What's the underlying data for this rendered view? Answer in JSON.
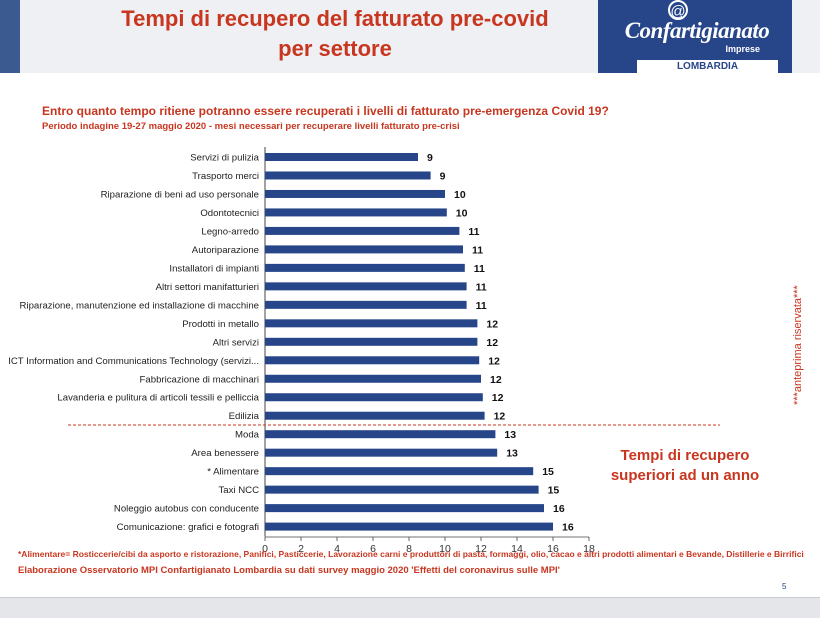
{
  "header": {
    "title_line1": "Tempi di recupero del fatturato pre-covid",
    "title_line2": "per settore",
    "logo_at": "@",
    "logo_text": "Confartigianato",
    "logo_sub": "Imprese",
    "logo_band": "LOMBARDIA"
  },
  "question": "Entro quanto tempo ritiene potranno essere recuperati i livelli di fatturato pre-emergenza Covid 19?",
  "period": "Periodo indagine 19-27 maggio 2020  - mesi necessari per recuperare livelli fatturato pre-crisi",
  "side_note": "***anteprima riservata***",
  "callout_line1": "Tempi di recupero",
  "callout_line2": "superiori ad un anno",
  "footnote": "*Alimentare= Rosticcerie/cibi da asporto e ristorazione, Panifici, Pasticcerie, Lavorazione carni e produttori di pasta, formaggi, olio, cacao e altri prodotti alimentari e Bevande, Distillerie e Birrifici",
  "source": "Elaborazione Osservatorio MPI Confartigianato Lombardia su dati survey maggio 2020  'Effetti del coronavirus sulle MPI'",
  "page_number": "5",
  "colors": {
    "accent": "#c8361f",
    "bar": "#27468a",
    "brand": "#27468a"
  },
  "chart_data": {
    "type": "bar",
    "orientation": "horizontal",
    "categories": [
      "Servizi di pulizia",
      "Trasporto merci",
      "Riparazione di beni ad uso personale",
      "Odontotecnici",
      "Legno-arredo",
      "Autoriparazione",
      "Installatori di impianti",
      "Altri settori manifatturieri",
      "Riparazione, manutenzione ed installazione di macchine",
      "Prodotti in metallo",
      "Altri servizi",
      "ICT Information and Communications Technology (servizi...",
      "Fabbricazione di macchinari",
      "Lavanderia e pulitura di articoli tessili e pelliccia",
      "Edilizia",
      "Moda",
      "Area benessere",
      "* Alimentare",
      "Taxi NCC",
      "Noleggio autobus con conducente",
      "Comunicazione: grafici e fotografi"
    ],
    "values": [
      8.5,
      9.2,
      10.0,
      10.1,
      10.8,
      11.0,
      11.1,
      11.2,
      11.2,
      11.8,
      11.8,
      11.9,
      12.0,
      12.1,
      12.2,
      12.8,
      12.9,
      14.9,
      15.2,
      15.5,
      16.0
    ],
    "labels": [
      "9",
      "9",
      "10",
      "10",
      "11",
      "11",
      "11",
      "11",
      "11",
      "12",
      "12",
      "12",
      "12",
      "12",
      "12",
      "13",
      "13",
      "15",
      "15",
      "16",
      "16"
    ],
    "xlim": [
      0,
      18
    ],
    "xticks": [
      "0",
      "2",
      "4",
      "6",
      "8",
      "10",
      "12",
      "14",
      "16",
      "18"
    ],
    "threshold_after_index": 14,
    "grid": false,
    "legend": "none"
  }
}
